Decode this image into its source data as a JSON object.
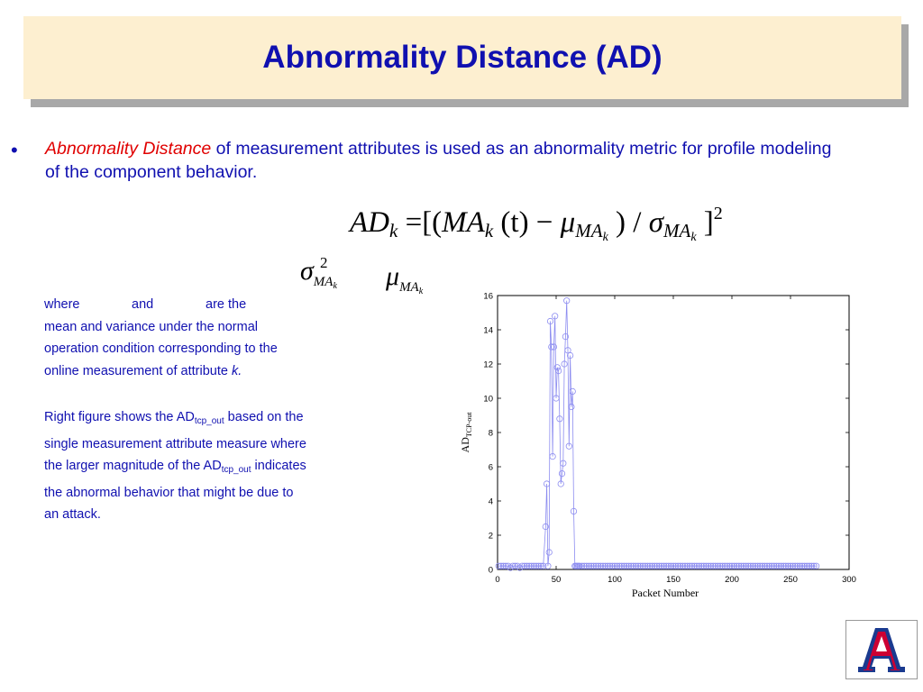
{
  "slide": {
    "title": "Abnormality Distance (AD)",
    "bullet_symbol": "•",
    "bullet_em": "Abnormality Distance",
    "bullet_rest": " of measurement attributes is used as an abnormality metric for profile modeling of the component behavior."
  },
  "formula": {
    "ad": "AD",
    "k": "k",
    "eq_open": "=[(",
    "ma": "MA",
    "t_part": "(t) −",
    "mu": "μ",
    "slash": ") / ",
    "sigma": "σ",
    "close": "]",
    "exp": "2",
    "sub_ma": "MA",
    "sub_k": "k"
  },
  "symbols": {
    "sigma": "σ",
    "mu": "μ",
    "square": "2",
    "sub_ma": "MA",
    "sub_k": "k"
  },
  "description": {
    "where": "where",
    "and": "and",
    "are_the": "are the",
    "line2": "mean and  variance under the normal",
    "line3": "operation condition corresponding to the",
    "line4_text": "online measurement of attribute ",
    "line4_k": "k.",
    "p2_l1_a": "Right figure shows the AD",
    "p2_sub": "tcp_out",
    "p2_l1_b": " based on the",
    "p2_l2": "single measurement attribute measure where",
    "p2_l3_a": "the larger magnitude of the AD",
    "p2_l3_b": " indicates",
    "p2_l4": "the abnormal behavior that might be due to",
    "p2_l5": "an attack."
  },
  "chart_data": {
    "type": "line",
    "xlabel": "Packet Number",
    "ylabel": "AD",
    "ylabel_sub": "TCP-out",
    "xlim": [
      0,
      300
    ],
    "ylim": [
      0,
      16
    ],
    "xticks": [
      0,
      50,
      100,
      150,
      200,
      250,
      300
    ],
    "yticks": [
      0,
      2,
      4,
      6,
      8,
      10,
      12,
      14,
      16
    ],
    "series_color": "#8c8cf0",
    "marker": "circle",
    "series": [
      {
        "x": [
          1,
          3,
          5,
          7,
          9,
          11,
          13,
          15,
          17,
          19,
          21,
          23,
          25,
          27,
          29,
          31,
          33,
          35,
          37,
          39,
          41,
          42,
          43,
          44,
          45,
          46,
          47,
          48,
          49,
          50,
          51,
          52,
          53,
          54,
          55,
          56,
          57,
          58,
          59,
          60,
          61,
          62,
          63,
          64,
          65,
          66,
          67,
          68,
          69,
          70,
          72,
          74,
          76,
          78,
          80,
          82,
          84,
          86,
          88,
          90,
          92,
          94,
          96,
          98,
          100,
          102,
          104,
          106,
          108,
          110,
          112,
          114,
          116,
          118,
          120,
          122,
          124,
          126,
          128,
          130,
          132,
          134,
          136,
          138,
          140,
          142,
          144,
          146,
          148,
          150,
          152,
          154,
          156,
          158,
          160,
          162,
          164,
          166,
          168,
          170,
          172,
          174,
          176,
          178,
          180,
          182,
          184,
          186,
          188,
          190,
          192,
          194,
          196,
          198,
          200,
          202,
          204,
          206,
          208,
          210,
          212,
          214,
          216,
          218,
          220,
          222,
          224,
          226,
          228,
          230,
          232,
          234,
          236,
          238,
          240,
          242,
          244,
          246,
          248,
          250,
          252,
          254,
          256,
          258,
          260,
          262,
          264,
          266,
          268,
          270,
          272
        ],
        "y": [
          0.2,
          0.2,
          0.2,
          0.2,
          0.2,
          0.1,
          0.2,
          0.2,
          0.2,
          0.1,
          0.2,
          0.2,
          0.2,
          0.2,
          0.2,
          0.2,
          0.2,
          0.2,
          0.2,
          0.2,
          2.5,
          5.0,
          0.2,
          1.0,
          14.5,
          13.0,
          6.6,
          13.0,
          14.8,
          10.0,
          11.8,
          11.6,
          8.8,
          5.0,
          5.6,
          6.2,
          12.0,
          13.6,
          15.7,
          12.8,
          7.2,
          12.5,
          9.5,
          10.4,
          3.4,
          0.2,
          0.2,
          0.2,
          0.2,
          0.2,
          0.2,
          0.2,
          0.2,
          0.2,
          0.2,
          0.2,
          0.2,
          0.2,
          0.2,
          0.2,
          0.2,
          0.2,
          0.2,
          0.2,
          0.2,
          0.2,
          0.2,
          0.2,
          0.2,
          0.2,
          0.2,
          0.2,
          0.2,
          0.2,
          0.2,
          0.2,
          0.2,
          0.2,
          0.2,
          0.2,
          0.2,
          0.2,
          0.2,
          0.2,
          0.2,
          0.2,
          0.2,
          0.2,
          0.2,
          0.2,
          0.2,
          0.2,
          0.2,
          0.2,
          0.2,
          0.2,
          0.2,
          0.2,
          0.2,
          0.2,
          0.2,
          0.2,
          0.2,
          0.2,
          0.2,
          0.2,
          0.2,
          0.2,
          0.2,
          0.2,
          0.2,
          0.2,
          0.2,
          0.2,
          0.2,
          0.2,
          0.2,
          0.2,
          0.2,
          0.2,
          0.2,
          0.2,
          0.2,
          0.2,
          0.2,
          0.2,
          0.2,
          0.2,
          0.2,
          0.2,
          0.2,
          0.2,
          0.2,
          0.2,
          0.2,
          0.2,
          0.2,
          0.2,
          0.2,
          0.2,
          0.2,
          0.2,
          0.2,
          0.2,
          0.2,
          0.2,
          0.2,
          0.2,
          0.2,
          0.2,
          0.2
        ]
      }
    ]
  },
  "logo": {
    "letter": "A",
    "colors": {
      "blue": "#1a3a8f",
      "red": "#cc0033"
    }
  }
}
